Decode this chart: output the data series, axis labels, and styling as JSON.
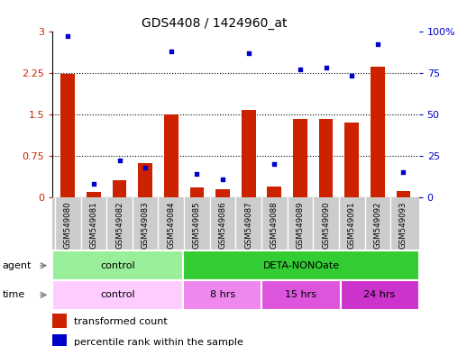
{
  "title": "GDS4408 / 1424960_at",
  "samples": [
    "GSM549080",
    "GSM549081",
    "GSM549082",
    "GSM549083",
    "GSM549084",
    "GSM549085",
    "GSM549086",
    "GSM549087",
    "GSM549088",
    "GSM549089",
    "GSM549090",
    "GSM549091",
    "GSM549092",
    "GSM549093"
  ],
  "transformed_count": [
    2.22,
    0.1,
    0.3,
    0.62,
    1.5,
    0.18,
    0.15,
    1.58,
    0.2,
    1.41,
    1.41,
    1.35,
    2.35,
    0.12
  ],
  "percentile_rank": [
    97,
    8,
    22,
    18,
    88,
    14,
    11,
    87,
    20,
    77,
    78,
    73,
    92,
    15
  ],
  "ylim_left": [
    0,
    3
  ],
  "ylim_right": [
    0,
    100
  ],
  "yticks_left": [
    0,
    0.75,
    1.5,
    2.25,
    3
  ],
  "yticks_right": [
    0,
    25,
    50,
    75,
    100
  ],
  "ytick_labels_left": [
    "0",
    "0.75",
    "1.5",
    "2.25",
    "3"
  ],
  "ytick_labels_right": [
    "0",
    "25",
    "50",
    "75",
    "100%"
  ],
  "bar_color": "#cc2200",
  "dot_color": "#0000cc",
  "dotted_lines": [
    0.75,
    1.5,
    2.25
  ],
  "agent_groups": [
    {
      "label": "control",
      "start": 0,
      "end": 4,
      "color": "#99ee99"
    },
    {
      "label": "DETA-NONOate",
      "start": 5,
      "end": 13,
      "color": "#33cc33"
    }
  ],
  "time_groups": [
    {
      "label": "control",
      "start": 0,
      "end": 4,
      "color": "#ffccff"
    },
    {
      "label": "8 hrs",
      "start": 5,
      "end": 7,
      "color": "#ee88ee"
    },
    {
      "label": "15 hrs",
      "start": 8,
      "end": 10,
      "color": "#dd55dd"
    },
    {
      "label": "24 hrs",
      "start": 11,
      "end": 13,
      "color": "#cc33cc"
    }
  ],
  "legend_bar_label": "transformed count",
  "legend_dot_label": "percentile rank within the sample",
  "left_axis_color": "#cc2200",
  "right_axis_color": "#0000cc",
  "tick_bg_color": "#cccccc",
  "fig_width": 5.28,
  "fig_height": 3.84,
  "dpi": 100
}
